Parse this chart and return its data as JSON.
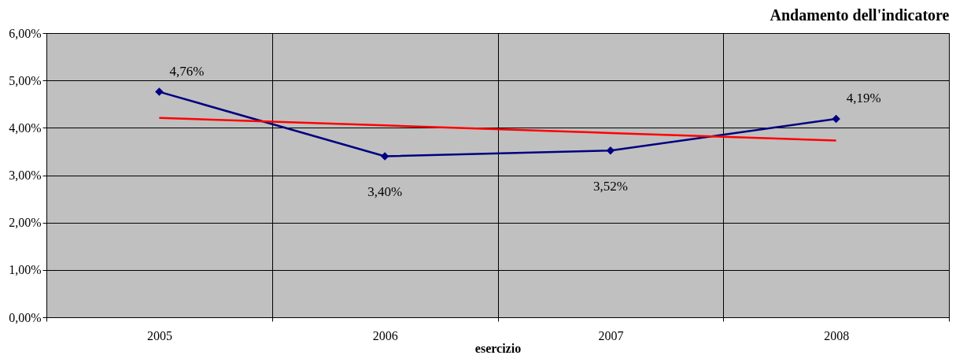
{
  "chart_data": {
    "type": "line",
    "title": "Andamento dell'indicatore",
    "xlabel": "esercizio",
    "categories": [
      "2005",
      "2006",
      "2007",
      "2008"
    ],
    "series": [
      {
        "color": "#000080",
        "values": [
          4.76,
          3.4,
          3.52,
          4.19
        ],
        "marker": "diamond",
        "value_labels": [
          "4,76%",
          "3,40%",
          "3,52%",
          "4,19%"
        ]
      },
      {
        "type": "line",
        "color": "#ff0000",
        "values": [
          4.21,
          4.05,
          3.89,
          3.73
        ],
        "marker": "none"
      }
    ],
    "ylim": [
      0,
      6
    ],
    "yticks": [
      {
        "value": 0,
        "label": "0,00%"
      },
      {
        "value": 1,
        "label": "1,00%"
      },
      {
        "value": 2,
        "label": "2,00%"
      },
      {
        "value": 3,
        "label": "3,00%"
      },
      {
        "value": 4,
        "label": "4,00%"
      },
      {
        "value": 5,
        "label": "5,00%"
      },
      {
        "value": 6,
        "label": "6,00%"
      }
    ],
    "grid": true
  }
}
